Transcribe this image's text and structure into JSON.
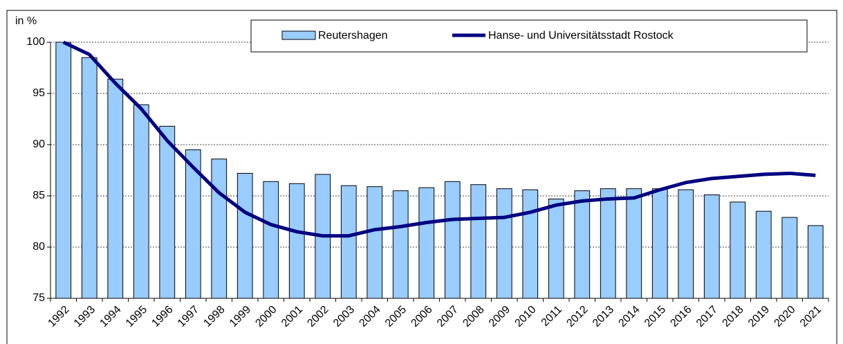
{
  "chart_data": {
    "type": "bar_line",
    "y_label": "in %",
    "categories": [
      "1992",
      "1993",
      "1994",
      "1995",
      "1996",
      "1997",
      "1998",
      "1999",
      "2000",
      "2001",
      "2002",
      "2003",
      "2004",
      "2005",
      "2006",
      "2007",
      "2008",
      "2009",
      "2010",
      "2011",
      "2012",
      "2013",
      "2014",
      "2015",
      "2016",
      "2017",
      "2018",
      "2019",
      "2020",
      "2021"
    ],
    "series": [
      {
        "name": "Reutershagen",
        "type": "bar",
        "color": "#99ccff",
        "values": [
          100,
          98.5,
          96.4,
          93.9,
          91.8,
          89.5,
          88.6,
          87.2,
          86.4,
          86.2,
          87.1,
          86.0,
          85.9,
          85.5,
          85.8,
          86.4,
          86.1,
          85.7,
          85.6,
          84.7,
          85.5,
          85.7,
          85.7,
          85.7,
          85.6,
          85.1,
          84.4,
          83.5,
          82.9,
          82.1
        ]
      },
      {
        "name": "Hanse- und Universitätsstadt Rostock",
        "type": "line",
        "color": "#000080",
        "values": [
          100,
          98.8,
          96.0,
          93.5,
          90.4,
          87.8,
          85.3,
          83.4,
          82.2,
          81.5,
          81.1,
          81.1,
          81.7,
          82.0,
          82.4,
          82.7,
          82.8,
          82.9,
          83.4,
          84.1,
          84.5,
          84.7,
          84.8,
          85.6,
          86.3,
          86.7,
          86.9,
          87.1,
          87.2,
          87.0
        ]
      }
    ],
    "ylim": [
      75,
      100
    ],
    "yticks": [
      75,
      80,
      85,
      90,
      95,
      100
    ],
    "grid": true,
    "legend": "top"
  }
}
